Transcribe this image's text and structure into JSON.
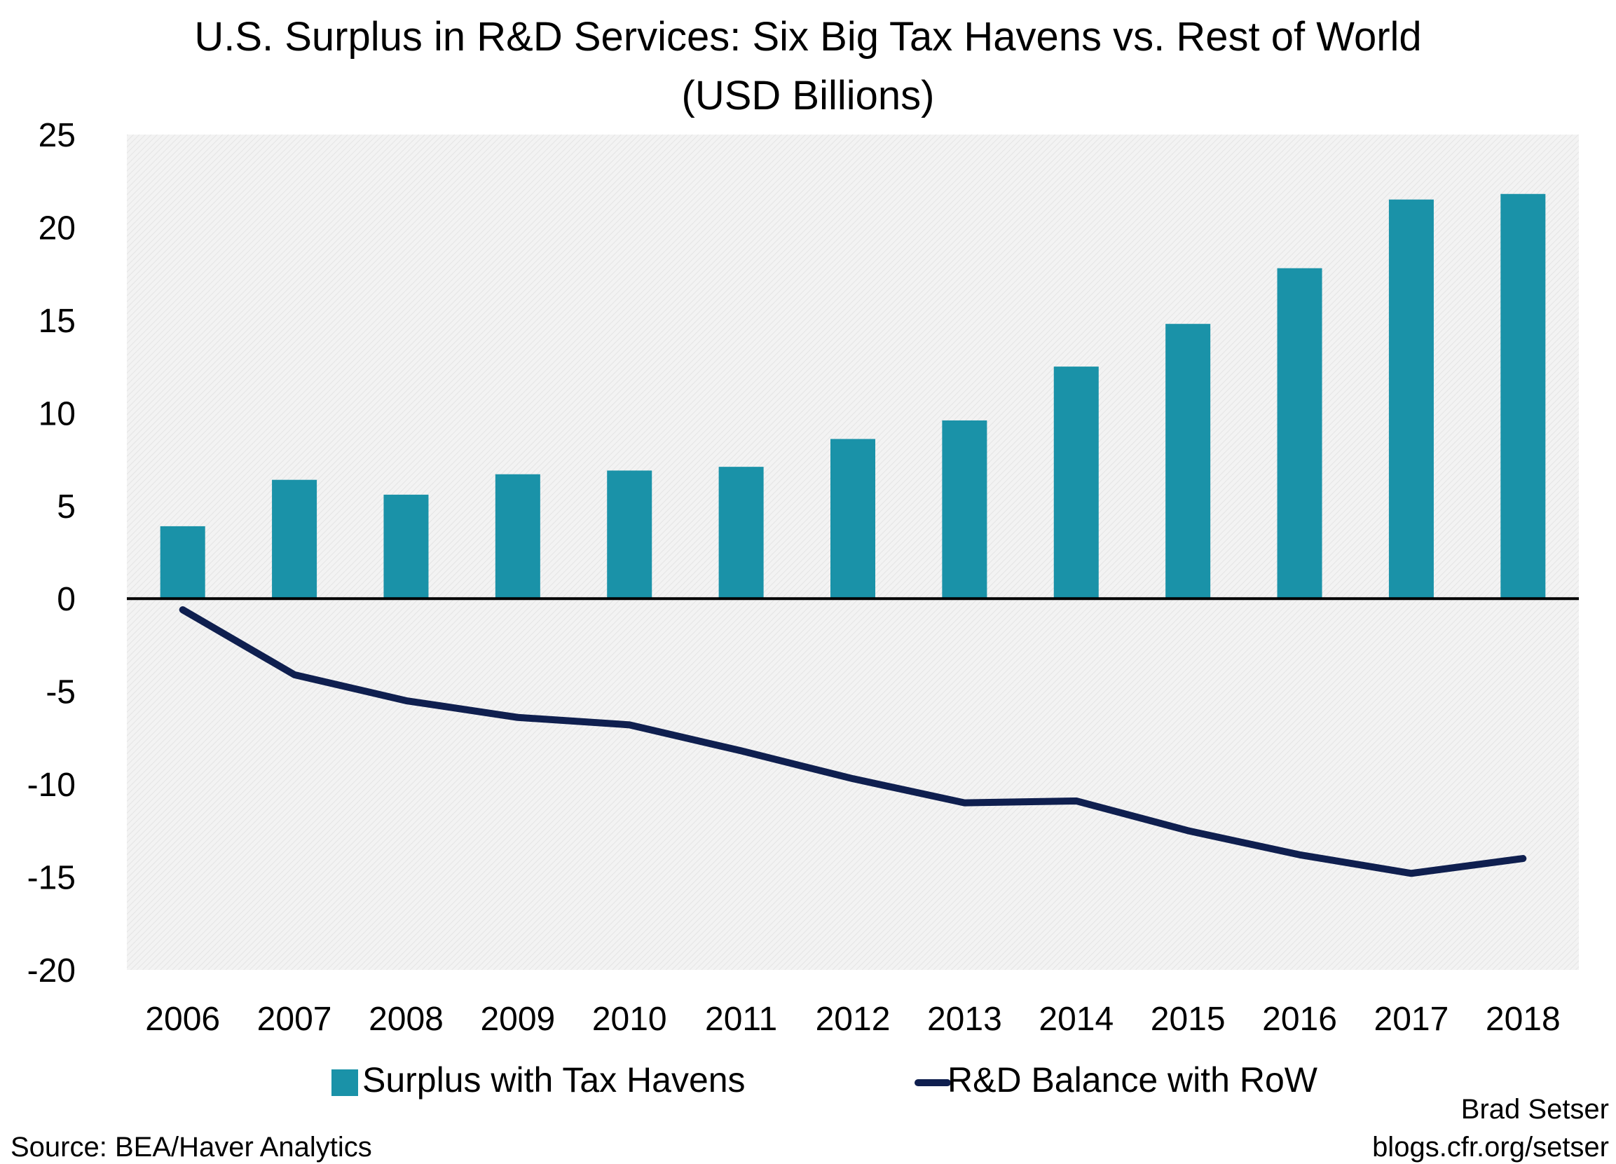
{
  "chart_data": {
    "type": "bar+line",
    "title": "U.S. Surplus in R&D Services: Six Big Tax Havens vs. Rest of World",
    "subtitle": "(USD Billions)",
    "categories": [
      "2006",
      "2007",
      "2008",
      "2009",
      "2010",
      "2011",
      "2012",
      "2013",
      "2014",
      "2015",
      "2016",
      "2017",
      "2018"
    ],
    "series": [
      {
        "name": "Surplus with Tax Havens",
        "type": "bar",
        "color": "#1a92a8",
        "values": [
          3.9,
          6.4,
          5.6,
          6.7,
          6.9,
          7.1,
          8.6,
          9.6,
          12.5,
          14.8,
          17.8,
          21.5,
          21.8
        ]
      },
      {
        "name": "R&D Balance with RoW",
        "type": "line",
        "color": "#0f1f4f",
        "values": [
          -0.6,
          -4.1,
          -5.5,
          -6.4,
          -6.8,
          -8.2,
          -9.7,
          -11.0,
          -10.9,
          -12.5,
          -13.8,
          -14.8,
          -14.0
        ]
      }
    ],
    "ylim": [
      -20,
      25
    ],
    "yticks": [
      "25",
      "20",
      "15",
      "10",
      "5",
      "0",
      "-5",
      "-10",
      "-15",
      "-20"
    ],
    "grid": false,
    "legend": "bottom",
    "xlabel": "",
    "ylabel": ""
  },
  "footer": {
    "source": "Source: BEA/Haver Analytics",
    "author": "Brad Setser",
    "url": "blogs.cfr.org/setser"
  }
}
